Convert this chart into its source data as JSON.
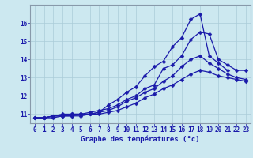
{
  "xlabel": "Graphe des températures (°c)",
  "background_color": "#cce8f0",
  "grid_color": "#aaccd8",
  "line_color": "#1a1aaa",
  "spine_color": "#8899aa",
  "hours": [
    0,
    1,
    2,
    3,
    4,
    5,
    6,
    7,
    8,
    9,
    10,
    11,
    12,
    13,
    14,
    15,
    16,
    17,
    18,
    19,
    20,
    21,
    22,
    23
  ],
  "series1": [
    10.8,
    10.8,
    10.9,
    10.9,
    11.0,
    11.0,
    11.0,
    11.1,
    11.5,
    11.8,
    12.2,
    12.5,
    13.1,
    13.6,
    13.9,
    14.7,
    15.2,
    16.2,
    16.5,
    14.2,
    13.8,
    13.4,
    null,
    null
  ],
  "series2": [
    10.8,
    10.8,
    10.9,
    11.0,
    11.0,
    11.0,
    11.1,
    11.2,
    11.3,
    11.5,
    11.8,
    12.0,
    12.4,
    12.6,
    13.5,
    13.7,
    14.2,
    15.1,
    15.5,
    15.4,
    14.0,
    13.7,
    13.4,
    13.4
  ],
  "series3": [
    10.8,
    10.8,
    10.9,
    10.9,
    10.9,
    11.0,
    11.0,
    11.1,
    11.2,
    11.4,
    11.7,
    11.9,
    12.2,
    12.4,
    12.8,
    13.1,
    13.6,
    14.0,
    14.2,
    13.8,
    13.5,
    13.2,
    13.0,
    12.9
  ],
  "series4": [
    10.8,
    10.8,
    10.8,
    10.9,
    10.9,
    10.9,
    11.0,
    11.0,
    11.1,
    11.2,
    11.4,
    11.6,
    11.9,
    12.1,
    12.4,
    12.6,
    12.9,
    13.2,
    13.4,
    13.3,
    13.1,
    13.0,
    12.9,
    12.8
  ],
  "ylim": [
    10.5,
    17.0
  ],
  "yticks": [
    11,
    12,
    13,
    14,
    15,
    16
  ],
  "tick_fontsize": 5.5,
  "xlabel_fontsize": 6.5,
  "marker_size": 2.5,
  "linewidth": 0.9
}
